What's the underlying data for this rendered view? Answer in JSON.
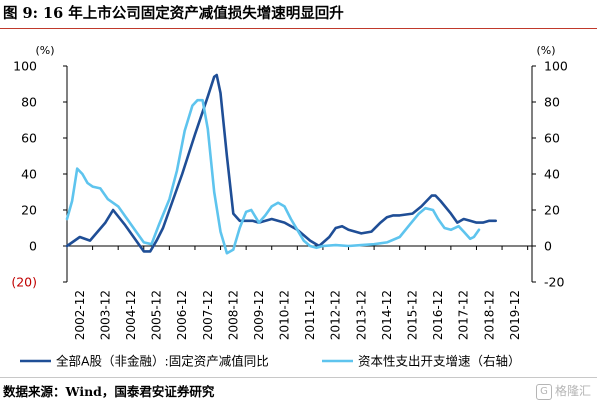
{
  "figure": {
    "title": "图 9:  16 年上市公司固定资产减值损失增速明显回升",
    "source": "数据来源：Wind，国泰君安证券研究",
    "watermark": "格隆汇"
  },
  "colors": {
    "series_dark": "#1f4e96",
    "series_light": "#5ec4ee",
    "negative_tick": "#c00000",
    "axis": "#000000"
  },
  "chart_data": {
    "type": "line",
    "x_tick_labels": [
      "2002-12",
      "2003-12",
      "2004-12",
      "2005-12",
      "2006-12",
      "2007-12",
      "2008-12",
      "2009-12",
      "2010-12",
      "2011-12",
      "2012-12",
      "2013-12",
      "2014-12",
      "2015-12",
      "2016-12",
      "2017-12",
      "2018-12",
      "2019-12"
    ],
    "x_range": [
      2002.0,
      2020.17
    ],
    "left_axis": {
      "unit_label": "(%)",
      "ticks": [
        -20,
        0,
        20,
        40,
        60,
        80,
        100
      ],
      "tick_labels": [
        "(20)",
        "0",
        "20",
        "40",
        "60",
        "80",
        "100"
      ],
      "range": [
        -20,
        100
      ]
    },
    "right_axis": {
      "unit_label": "(%)",
      "ticks": [
        -20,
        0,
        20,
        40,
        60,
        80,
        100
      ],
      "tick_labels": [
        "-20",
        "0",
        "20",
        "40",
        "60",
        "80",
        "100"
      ],
      "range": [
        -20,
        100
      ]
    },
    "series": [
      {
        "name": "全部A股（非金融）:固定资产减值同比",
        "axis": "left",
        "points": [
          [
            2002.0,
            0
          ],
          [
            2002.5,
            5
          ],
          [
            2002.9,
            3
          ],
          [
            2003.5,
            13
          ],
          [
            2003.8,
            20
          ],
          [
            2004.25,
            12
          ],
          [
            2004.75,
            2
          ],
          [
            2005.0,
            -3
          ],
          [
            2005.25,
            -3
          ],
          [
            2005.5,
            3
          ],
          [
            2005.75,
            10
          ],
          [
            2006.0,
            20
          ],
          [
            2006.5,
            40
          ],
          [
            2007.0,
            62
          ],
          [
            2007.5,
            83
          ],
          [
            2007.75,
            94
          ],
          [
            2007.85,
            95
          ],
          [
            2008.0,
            85
          ],
          [
            2008.25,
            50
          ],
          [
            2008.5,
            18
          ],
          [
            2008.75,
            14
          ],
          [
            2009.0,
            14
          ],
          [
            2009.25,
            14
          ],
          [
            2009.5,
            13
          ],
          [
            2010.0,
            15
          ],
          [
            2010.5,
            13
          ],
          [
            2011.0,
            9
          ],
          [
            2011.5,
            3
          ],
          [
            2011.85,
            0
          ],
          [
            2012.25,
            5
          ],
          [
            2012.5,
            10
          ],
          [
            2012.75,
            11
          ],
          [
            2013.0,
            9
          ],
          [
            2013.5,
            7
          ],
          [
            2013.9,
            8
          ],
          [
            2014.25,
            13
          ],
          [
            2014.5,
            16
          ],
          [
            2014.75,
            17
          ],
          [
            2015.0,
            17
          ],
          [
            2015.5,
            18
          ],
          [
            2015.85,
            22
          ],
          [
            2016.25,
            28
          ],
          [
            2016.4,
            28
          ],
          [
            2016.6,
            25
          ],
          [
            2017.0,
            18
          ],
          [
            2017.25,
            13
          ],
          [
            2017.5,
            15
          ],
          [
            2017.75,
            14
          ],
          [
            2018.0,
            13
          ],
          [
            2018.25,
            13
          ],
          [
            2018.5,
            14
          ],
          [
            2018.75,
            14
          ]
        ]
      },
      {
        "name": "资本性支出开支增速（右轴）",
        "axis": "right",
        "points": [
          [
            2002.0,
            15
          ],
          [
            2002.2,
            25
          ],
          [
            2002.4,
            43
          ],
          [
            2002.6,
            40
          ],
          [
            2002.8,
            35
          ],
          [
            2003.0,
            33
          ],
          [
            2003.3,
            32
          ],
          [
            2003.6,
            26
          ],
          [
            2004.0,
            22
          ],
          [
            2004.3,
            16
          ],
          [
            2004.7,
            8
          ],
          [
            2005.0,
            2
          ],
          [
            2005.3,
            1
          ],
          [
            2005.6,
            12
          ],
          [
            2006.0,
            26
          ],
          [
            2006.3,
            42
          ],
          [
            2006.6,
            64
          ],
          [
            2006.9,
            78
          ],
          [
            2007.1,
            81
          ],
          [
            2007.3,
            81
          ],
          [
            2007.5,
            65
          ],
          [
            2007.75,
            30
          ],
          [
            2008.0,
            8
          ],
          [
            2008.25,
            -4
          ],
          [
            2008.5,
            -2
          ],
          [
            2008.75,
            10
          ],
          [
            2009.0,
            19
          ],
          [
            2009.2,
            20
          ],
          [
            2009.5,
            13
          ],
          [
            2009.75,
            17
          ],
          [
            2010.0,
            22
          ],
          [
            2010.25,
            24
          ],
          [
            2010.5,
            22
          ],
          [
            2010.75,
            15
          ],
          [
            2011.0,
            9
          ],
          [
            2011.25,
            3
          ],
          [
            2011.5,
            0
          ],
          [
            2011.75,
            -1
          ],
          [
            2012.0,
            0
          ],
          [
            2012.5,
            0.5
          ],
          [
            2013.0,
            0
          ],
          [
            2013.5,
            0.5
          ],
          [
            2014.0,
            1
          ],
          [
            2014.5,
            2
          ],
          [
            2015.0,
            5
          ],
          [
            2015.4,
            12
          ],
          [
            2015.75,
            18
          ],
          [
            2016.0,
            21
          ],
          [
            2016.3,
            20
          ],
          [
            2016.5,
            15
          ],
          [
            2016.75,
            10
          ],
          [
            2017.0,
            9
          ],
          [
            2017.3,
            11
          ],
          [
            2017.5,
            8
          ],
          [
            2017.75,
            4
          ],
          [
            2017.9,
            5
          ],
          [
            2018.1,
            9
          ]
        ]
      }
    ],
    "legend_position": "bottom",
    "grid": false
  }
}
